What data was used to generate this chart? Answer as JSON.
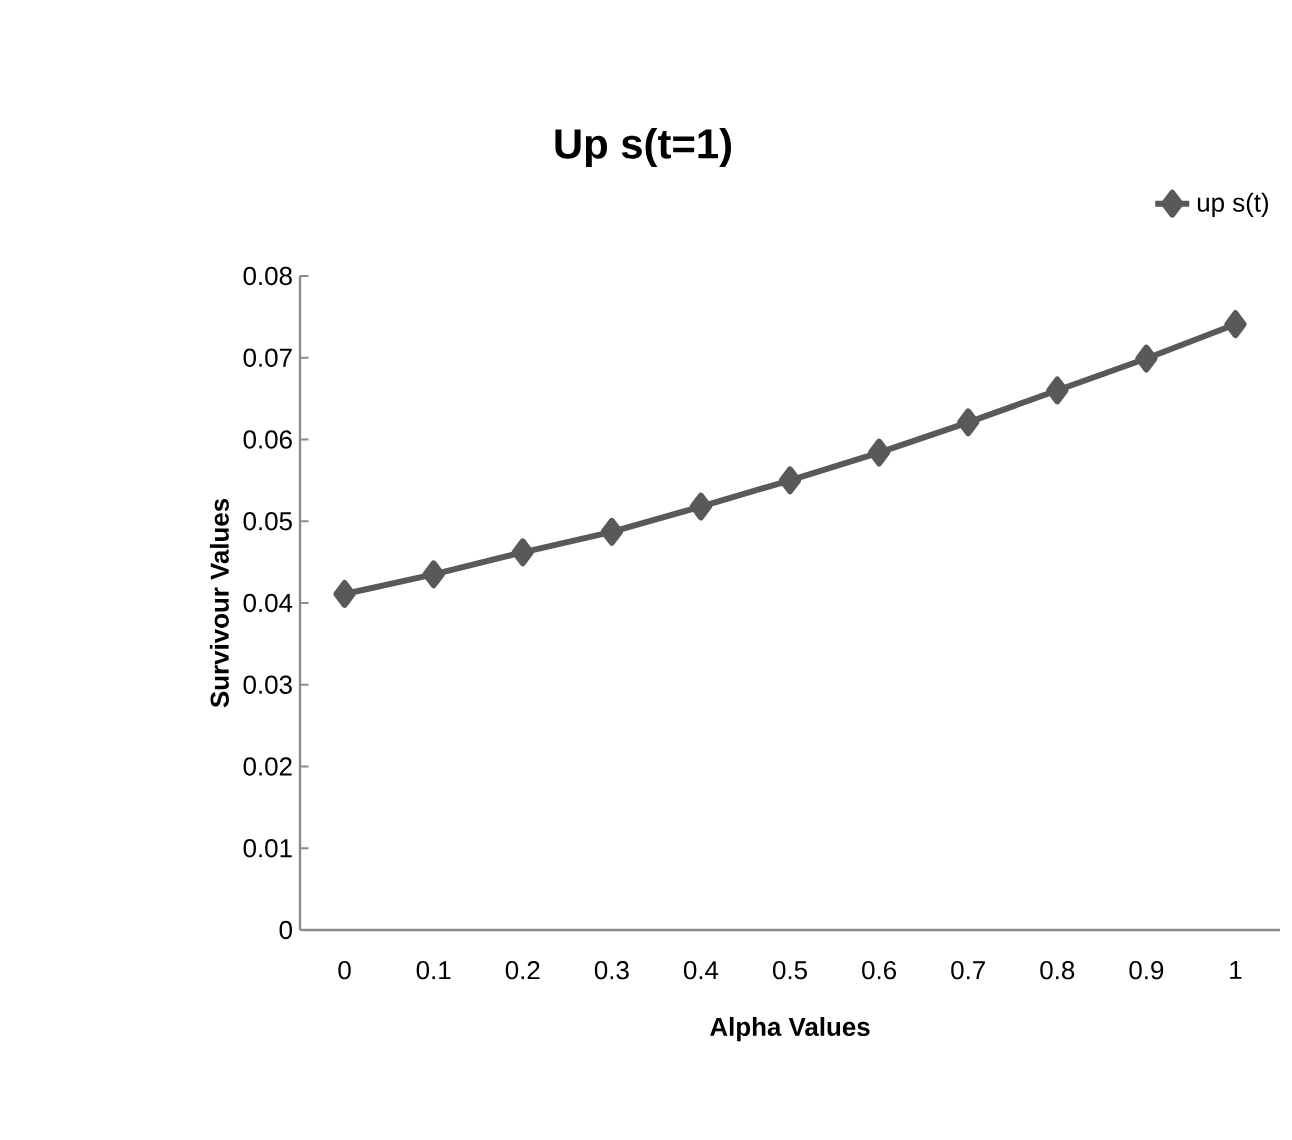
{
  "chart_data": {
    "type": "line",
    "title": "Up s(t=1)",
    "xlabel": "Alpha Values",
    "ylabel": "Survivour Values",
    "categories": [
      "0",
      "0.1",
      "0.2",
      "0.3",
      "0.4",
      "0.5",
      "0.6",
      "0.7",
      "0.8",
      "0.9",
      "1"
    ],
    "series": [
      {
        "name": "up s(t)",
        "color": "#595959",
        "values": [
          0.0411,
          0.0435,
          0.0462,
          0.0487,
          0.0518,
          0.055,
          0.0584,
          0.0621,
          0.066,
          0.0699,
          0.0741
        ]
      }
    ],
    "ylim": [
      0,
      0.08
    ],
    "yticks": [
      0,
      0.01,
      0.02,
      0.03,
      0.04,
      0.05,
      0.06,
      0.07,
      0.08
    ],
    "marker": "diamond",
    "line_style": "solid",
    "legend": "top right",
    "grid": false
  }
}
